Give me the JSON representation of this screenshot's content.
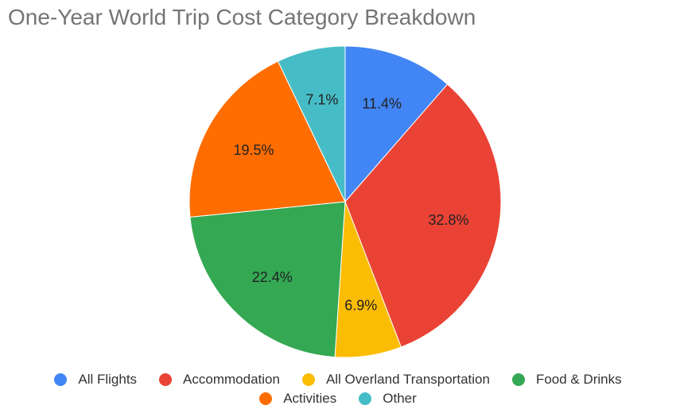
{
  "chart_data": {
    "type": "pie",
    "title": "One-Year World Trip Cost Category Breakdown",
    "categories": [
      "All Flights",
      "Accommodation",
      "All Overland Transportation",
      "Food & Drinks",
      "Activities",
      "Other"
    ],
    "values": [
      11.4,
      32.8,
      6.9,
      22.4,
      19.5,
      7.1
    ],
    "value_labels": [
      "11.4%",
      "32.8%",
      "6.9%",
      "22.4%",
      "19.5%",
      "7.1%"
    ],
    "colors": [
      "#4285f4",
      "#ea4335",
      "#fbbc04",
      "#34a853",
      "#ff6d01",
      "#46bdc6"
    ],
    "start_angle": "12 o'clock",
    "direction": "clockwise",
    "legend_position": "bottom"
  }
}
